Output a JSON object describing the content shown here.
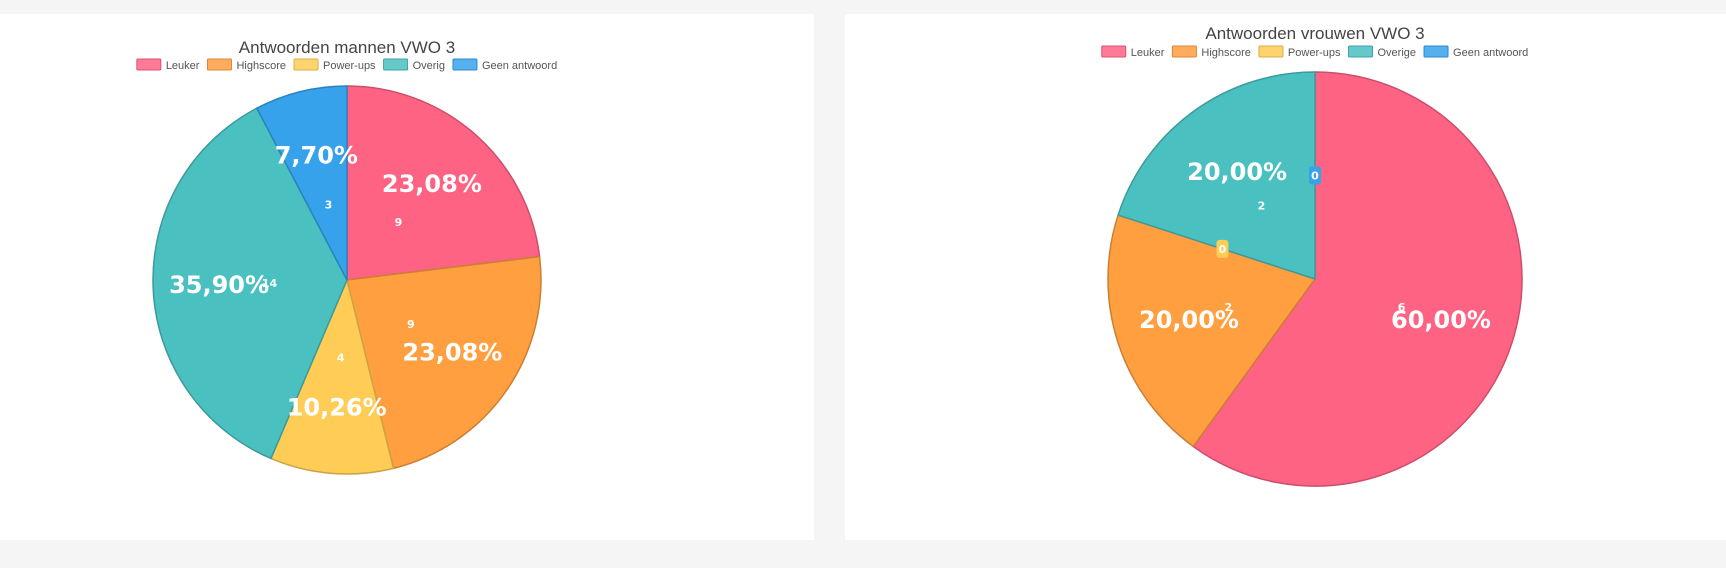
{
  "chart_data": [
    {
      "type": "pie",
      "title": "Antwoorden mannen VWO 3",
      "legend_position": "top",
      "categories": [
        "Leuker",
        "Highscore",
        "Power-ups",
        "Overig",
        "Geen antwoord"
      ],
      "values": [
        9,
        9,
        4,
        14,
        3
      ],
      "percent_labels": [
        "23,08%",
        "23,08%",
        "10,26%",
        "35,90%",
        "7,70%"
      ],
      "count_labels": [
        "9",
        "9",
        "4",
        "14",
        "3"
      ],
      "colors": [
        "#ff6384",
        "#ff9f40",
        "#ffcd56",
        "#4bc0c0",
        "#36a2eb"
      ]
    },
    {
      "type": "pie",
      "title": "Antwoorden vrouwen VWO 3",
      "legend_position": "top",
      "categories": [
        "Leuker",
        "Highscore",
        "Power-ups",
        "Overige",
        "Geen antwoord"
      ],
      "values": [
        6,
        2,
        0,
        2,
        0
      ],
      "percent_labels": [
        "60,00%",
        "20,00%",
        "",
        "20,00%",
        ""
      ],
      "count_labels": [
        "6",
        "2",
        "0",
        "2",
        "0"
      ],
      "colors": [
        "#ff6384",
        "#ff9f40",
        "#ffcd56",
        "#4bc0c0",
        "#36a2eb"
      ]
    }
  ]
}
